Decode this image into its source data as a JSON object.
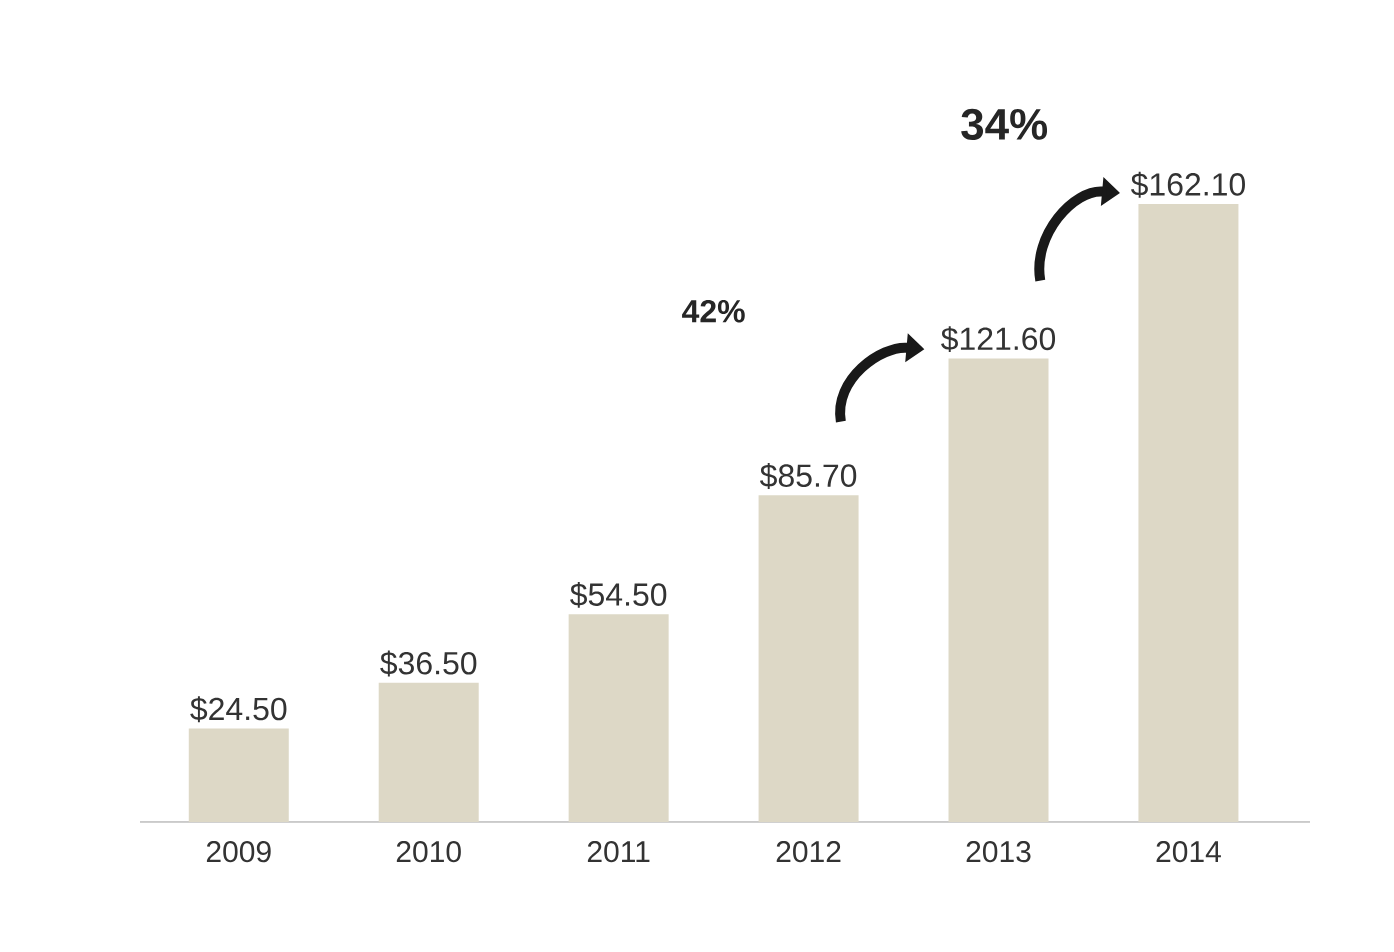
{
  "chart_data": {
    "type": "bar",
    "categories": [
      "2009",
      "2010",
      "2011",
      "2012",
      "2013",
      "2014"
    ],
    "values": [
      24.5,
      36.5,
      54.5,
      85.7,
      121.6,
      162.1
    ],
    "value_labels": [
      "$24.50",
      "$36.50",
      "$54.50",
      "$85.70",
      "$121.60",
      "$162.10"
    ],
    "color": "#ddd8c6",
    "annotations": [
      "42%",
      "34%"
    ]
  }
}
